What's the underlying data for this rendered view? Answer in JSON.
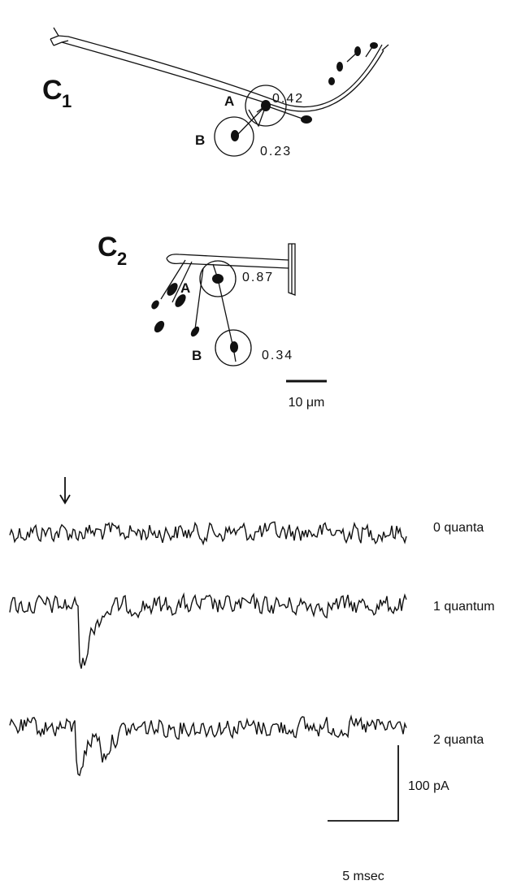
{
  "panels": [
    {
      "label": "C",
      "subscript": "1",
      "sites": [
        {
          "label": "A",
          "value": "0.42"
        },
        {
          "label": "B",
          "value": "0.23"
        }
      ]
    },
    {
      "label": "C",
      "subscript": "2",
      "sites": [
        {
          "label": "A",
          "value": "0.87"
        },
        {
          "label": "B",
          "value": "0.34"
        }
      ]
    }
  ],
  "scale_bar": {
    "label": "10 μm"
  },
  "traces": [
    {
      "label": "0 quanta"
    },
    {
      "label": "1 quantum"
    },
    {
      "label": "2 quanta"
    }
  ],
  "calibration": {
    "current": "100 pA",
    "time": "5 msec"
  }
}
